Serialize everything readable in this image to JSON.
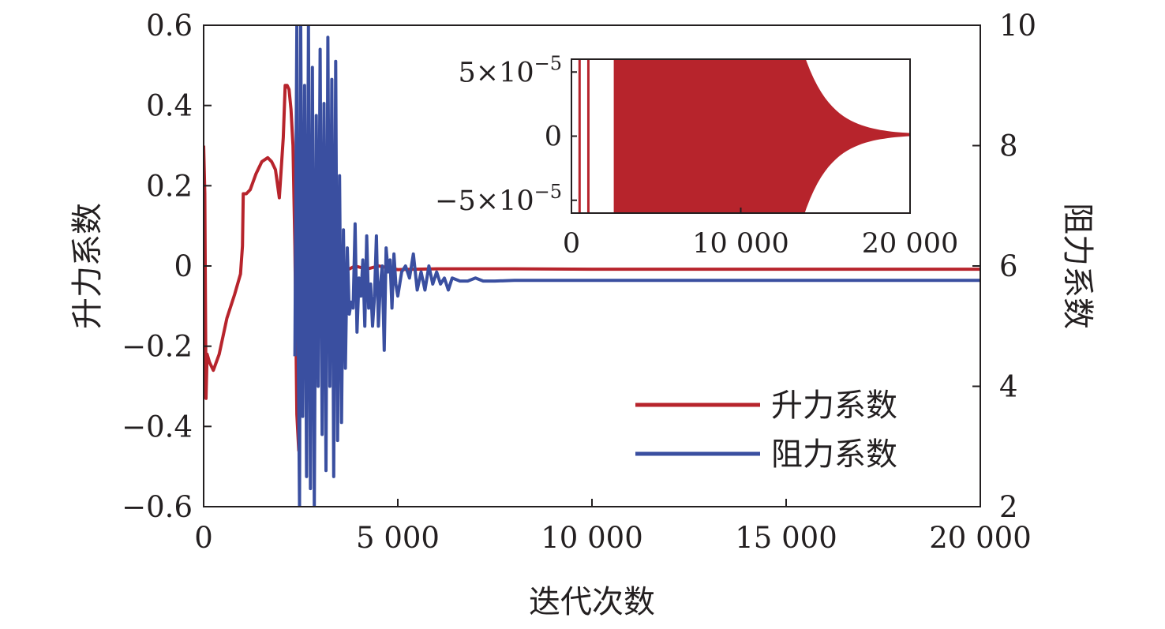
{
  "chart_data": {
    "type": "line",
    "xlabel": "迭代次数",
    "ylabel_left": "升力系数",
    "ylabel_right": "阻力系数",
    "xlim": [
      0,
      20000
    ],
    "ylim_left": [
      -0.6,
      0.6
    ],
    "ylim_right": [
      2,
      10
    ],
    "x_ticks": [
      "0",
      "5 000",
      "10 000",
      "15 000",
      "20 000"
    ],
    "y_ticks_left": [
      "0.6",
      "0.4",
      "0.2",
      "0",
      "−0.2",
      "−0.4",
      "−0.6"
    ],
    "y_ticks_right": [
      "10",
      "8",
      "6",
      "4",
      "2"
    ],
    "legend_position": "lower-right",
    "grid": false,
    "series": [
      {
        "name": "升力系数",
        "axis": "left",
        "color": "#b7242c",
        "x": [
          0,
          30,
          60,
          90,
          150,
          250,
          400,
          600,
          800,
          950,
          1000,
          1020,
          1100,
          1200,
          1350,
          1500,
          1650,
          1750,
          1850,
          1950,
          2050,
          2100,
          2150,
          2200,
          2250,
          2300,
          2350,
          2400,
          2450,
          2500,
          2550,
          2600,
          2650,
          2700,
          2750,
          2800,
          2850,
          2900,
          2950,
          3000,
          3100,
          3200,
          3300,
          3400,
          3500,
          3700,
          3900,
          4200,
          4500,
          5000,
          6000,
          8000,
          10000,
          12000,
          15000,
          20000
        ],
        "y": [
          0.3,
          0.18,
          -0.33,
          -0.22,
          -0.24,
          -0.26,
          -0.22,
          -0.13,
          -0.07,
          -0.02,
          0.05,
          0.18,
          0.18,
          0.19,
          0.23,
          0.26,
          0.27,
          0.26,
          0.24,
          0.17,
          0.32,
          0.45,
          0.45,
          0.44,
          0.39,
          0.3,
          0.05,
          -0.37,
          -0.46,
          -0.25,
          0.12,
          0.05,
          -0.1,
          0.03,
          0.0,
          -0.12,
          0.05,
          -0.09,
          0.03,
          -0.05,
          0.0,
          -0.02,
          0.01,
          -0.02,
          0.005,
          -0.01,
          0.0,
          -0.008,
          0.0,
          -0.009,
          -0.007,
          -0.007,
          -0.008,
          -0.008,
          -0.008,
          -0.008
        ]
      },
      {
        "name": "阻力系数",
        "axis": "right",
        "color": "#3a4fa0",
        "x": [
          2350,
          2400,
          2430,
          2470,
          2500,
          2550,
          2600,
          2650,
          2700,
          2750,
          2800,
          2850,
          2900,
          2950,
          3000,
          3050,
          3100,
          3150,
          3200,
          3250,
          3300,
          3350,
          3400,
          3450,
          3500,
          3550,
          3600,
          3650,
          3700,
          3750,
          3800,
          3850,
          3900,
          3950,
          4000,
          4050,
          4100,
          4150,
          4200,
          4250,
          4300,
          4350,
          4400,
          4450,
          4500,
          4550,
          4600,
          4650,
          4700,
          4750,
          4800,
          4850,
          4900,
          4950,
          5000,
          5100,
          5200,
          5300,
          5400,
          5500,
          5600,
          5700,
          5800,
          5900,
          6000,
          6100,
          6200,
          6300,
          6400,
          6600,
          6800,
          7000,
          7200,
          7500,
          8000,
          8500,
          9000,
          9500,
          10000,
          11000,
          20000
        ],
        "y": [
          4.5,
          10.0,
          5.0,
          2.0,
          10.0,
          3.5,
          9.0,
          2.5,
          10.0,
          2.3,
          9.3,
          2.0,
          8.5,
          4.0,
          9.6,
          3.2,
          8.7,
          2.6,
          9.8,
          4.0,
          9.1,
          2.5,
          9.4,
          3.1,
          7.5,
          3.4,
          6.6,
          4.3,
          6.3,
          5.2,
          5.4,
          5.3,
          6.7,
          4.9,
          5.8,
          5.5,
          6.1,
          5.0,
          6.5,
          5.3,
          5.7,
          5.0,
          5.5,
          6.5,
          5.0,
          5.7,
          6.0,
          4.6,
          6.3,
          5.9,
          6.1,
          5.3,
          6.2,
          5.7,
          5.5,
          5.9,
          6.0,
          5.8,
          6.2,
          5.6,
          5.9,
          5.6,
          6.0,
          5.7,
          5.9,
          5.7,
          5.8,
          5.6,
          5.8,
          5.75,
          5.75,
          5.8,
          5.75,
          5.75,
          5.76,
          5.76,
          5.76,
          5.76,
          5.76,
          5.76,
          5.76
        ]
      }
    ],
    "inset": {
      "type": "line",
      "xlim": [
        0,
        20000
      ],
      "ylim": [
        -6e-05,
        6e-05
      ],
      "x_ticks": [
        "0",
        "10 000",
        "20 000"
      ],
      "y_ticks": [
        {
          "mantissa": "5×10",
          "exp": "−5"
        },
        {
          "mantissa": "0",
          "exp": ""
        },
        {
          "mantissa": "−5×10",
          "exp": "−5"
        }
      ],
      "series_color": "#b7242c",
      "band": {
        "x_start": 2500,
        "x_end": 20000,
        "initial_half_amplitude": 0.0001,
        "hold_until": 13000,
        "final_half_amplitude": 1.2e-06,
        "center": 1.2e-06
      },
      "early_spikes_x": [
        480,
        1000
      ]
    }
  }
}
